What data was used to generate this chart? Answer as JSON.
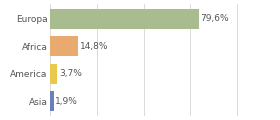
{
  "categories": [
    "Europa",
    "Africa",
    "America",
    "Asia"
  ],
  "values": [
    79.6,
    14.8,
    3.7,
    1.9
  ],
  "labels": [
    "79,6%",
    "14,8%",
    "3,7%",
    "1,9%"
  ],
  "bar_colors": [
    "#a8bc8f",
    "#e8aa6e",
    "#e8c94e",
    "#6b7fbc"
  ],
  "xlim": [
    0,
    105
  ],
  "background_color": "#ffffff",
  "text_color": "#555555",
  "label_fontsize": 6.5,
  "tick_fontsize": 6.5,
  "grid_xticks": [
    0,
    25,
    50,
    75,
    100
  ],
  "bar_height": 0.72,
  "figsize": [
    2.8,
    1.2
  ],
  "dpi": 100
}
